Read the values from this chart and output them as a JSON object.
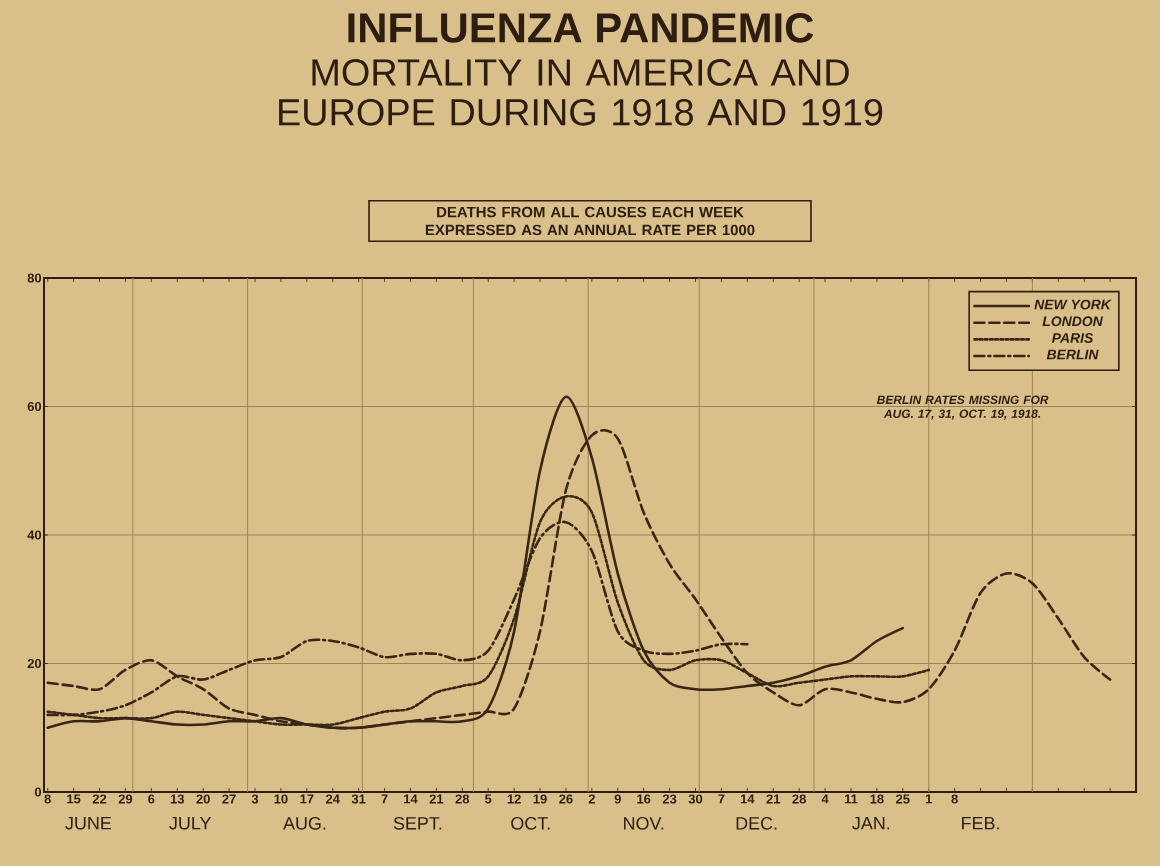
{
  "chart_data": {
    "type": "line",
    "title": "INFLUENZA PANDEMIC",
    "subtitle": "MORTALITY IN AMERICA AND EUROPE DURING 1918 AND 1919",
    "xlim": [
      "1918-06-07",
      "1919-03-29"
    ],
    "ylim": [
      0,
      80
    ],
    "yticks": [
      0,
      20,
      40,
      60,
      80
    ],
    "xticks": [
      {
        "value": "1918-06-08",
        "label": "8"
      },
      {
        "value": "1918-06-15",
        "label": "15"
      },
      {
        "value": "1918-06-22",
        "label": "22"
      },
      {
        "value": "1918-06-29",
        "label": "29"
      },
      {
        "value": "1918-07-06",
        "label": "6"
      },
      {
        "value": "1918-07-13",
        "label": "13"
      },
      {
        "value": "1918-07-20",
        "label": "20"
      },
      {
        "value": "1918-07-27",
        "label": "27"
      },
      {
        "value": "1918-08-03",
        "label": "3"
      },
      {
        "value": "1918-08-10",
        "label": "10"
      },
      {
        "value": "1918-08-17",
        "label": "17"
      },
      {
        "value": "1918-08-24",
        "label": "24"
      },
      {
        "value": "1918-08-31",
        "label": "31"
      },
      {
        "value": "1918-09-07",
        "label": "7"
      },
      {
        "value": "1918-09-14",
        "label": "14"
      },
      {
        "value": "1918-09-21",
        "label": "21"
      },
      {
        "value": "1918-09-28",
        "label": "28"
      },
      {
        "value": "1918-10-05",
        "label": "5"
      },
      {
        "value": "1918-10-12",
        "label": "12"
      },
      {
        "value": "1918-10-19",
        "label": "19"
      },
      {
        "value": "1918-10-26",
        "label": "26"
      },
      {
        "value": "1918-11-02",
        "label": "2"
      },
      {
        "value": "1918-11-09",
        "label": "9"
      },
      {
        "value": "1918-11-16",
        "label": "16"
      },
      {
        "value": "1918-11-23",
        "label": "23"
      },
      {
        "value": "1918-11-30",
        "label": "30"
      },
      {
        "value": "1918-12-07",
        "label": "7"
      },
      {
        "value": "1918-12-14",
        "label": "14"
      },
      {
        "value": "1918-12-21",
        "label": "21"
      },
      {
        "value": "1918-12-28",
        "label": "28"
      },
      {
        "value": "1919-01-04",
        "label": "4"
      },
      {
        "value": "1919-01-11",
        "label": "11"
      },
      {
        "value": "1919-01-18",
        "label": "18"
      },
      {
        "value": "1919-01-25",
        "label": "25"
      },
      {
        "value": "1919-02-01",
        "label": "1"
      },
      {
        "value": "1919-02-08",
        "label": "8"
      },
      {
        "value": "1919-02-15",
        "label": null
      },
      {
        "value": "1919-02-22",
        "label": null
      },
      {
        "value": "1919-03-01",
        "label": null
      },
      {
        "value": "1919-03-08",
        "label": null
      },
      {
        "value": "1919-03-15",
        "label": null
      },
      {
        "value": "1919-03-22",
        "label": null
      }
    ],
    "grid": "y",
    "legend": "top right",
    "ref_lines": [
      {
        "axis": "x",
        "value": "1918-07-01"
      },
      {
        "axis": "x",
        "value": "1918-08-01"
      },
      {
        "axis": "x",
        "value": "1918-09-01"
      },
      {
        "axis": "x",
        "value": "1918-10-01"
      },
      {
        "axis": "x",
        "value": "1918-11-01"
      },
      {
        "axis": "x",
        "value": "1918-12-01"
      },
      {
        "axis": "x",
        "value": "1919-01-01"
      },
      {
        "axis": "x",
        "value": "1919-02-01"
      },
      {
        "axis": "x",
        "value": "1919-03-01"
      }
    ],
    "annotations": [
      "DEATHS FROM ALL CAUSES EACH WEEK EXPRESSED AS AN ANNUAL RATE PER 1000",
      "BERLIN RATES MISSING FOR AUG. 17, 31, OCT. 19, 1918.",
      "JUNE",
      "JULY",
      "AUG.",
      "SEPT.",
      "OCT.",
      "NOV.",
      "DEC.",
      "JAN.",
      "FEB."
    ],
    "series": [
      {
        "name": "NEW YORK",
        "color": "#3b2616",
        "line_style": "solid",
        "x": [
          "1918-06-08",
          "1918-06-15",
          "1918-06-22",
          "1918-06-29",
          "1918-07-06",
          "1918-07-13",
          "1918-07-20",
          "1918-07-27",
          "1918-08-03",
          "1918-08-10",
          "1918-08-17",
          "1918-08-24",
          "1918-08-31",
          "1918-09-07",
          "1918-09-14",
          "1918-09-21",
          "1918-09-28",
          "1918-10-05",
          "1918-10-12",
          "1918-10-19",
          "1918-10-26",
          "1918-11-02",
          "1918-11-09",
          "1918-11-16",
          "1918-11-23",
          "1918-11-30",
          "1918-12-07",
          "1918-12-14",
          "1918-12-21",
          "1918-12-28",
          "1919-01-04",
          "1919-01-11",
          "1919-01-18",
          "1919-01-25"
        ],
        "values": [
          10,
          11,
          11,
          11.5,
          11,
          10.5,
          10.5,
          11,
          11,
          11.5,
          10.5,
          10,
          10,
          10.5,
          11,
          11,
          11,
          13,
          25,
          50,
          61.5,
          52,
          34,
          22,
          17,
          16,
          16,
          16.5,
          17,
          18,
          19.5,
          20.5,
          23.5,
          25.5
        ]
      },
      {
        "name": "LONDON",
        "color": "#3b2616",
        "line_style": "dashed",
        "x": [
          "1918-06-08",
          "1918-06-15",
          "1918-06-22",
          "1918-06-29",
          "1918-07-06",
          "1918-07-13",
          "1918-07-20",
          "1918-07-27",
          "1918-08-03",
          "1918-08-10",
          "1918-08-17",
          "1918-08-24",
          "1918-08-31",
          "1918-09-07",
          "1918-09-14",
          "1918-09-21",
          "1918-09-28",
          "1918-10-05",
          "1918-10-12",
          "1918-10-19",
          "1918-10-26",
          "1918-11-02",
          "1918-11-09",
          "1918-11-16",
          "1918-11-23",
          "1918-11-30",
          "1918-12-07",
          "1918-12-14",
          "1918-12-21",
          "1918-12-28",
          "1919-01-04",
          "1919-01-11",
          "1919-01-18",
          "1919-01-25",
          "1919-02-01",
          "1919-02-08",
          "1919-02-15",
          "1919-02-22",
          "1919-03-01",
          "1919-03-08",
          "1919-03-15",
          "1919-03-22"
        ],
        "values": [
          17,
          16.5,
          16,
          19,
          20.5,
          18,
          16,
          13,
          12,
          11,
          10.5,
          10,
          10,
          10.5,
          11,
          11.5,
          12,
          12.5,
          13,
          25,
          47,
          55.5,
          55,
          43.5,
          35.5,
          30,
          24,
          18.5,
          15.5,
          13.5,
          16,
          15.5,
          14.5,
          14,
          16,
          22,
          31,
          34,
          32.5,
          27,
          21,
          17.5
        ]
      },
      {
        "name": "PARIS",
        "color": "#3b2616",
        "line_style": "dotted",
        "x": [
          "1918-06-08",
          "1918-06-15",
          "1918-06-22",
          "1918-06-29",
          "1918-07-06",
          "1918-07-13",
          "1918-07-20",
          "1918-07-27",
          "1918-08-03",
          "1918-08-10",
          "1918-08-17",
          "1918-08-24",
          "1918-08-31",
          "1918-09-07",
          "1918-09-14",
          "1918-09-21",
          "1918-09-28",
          "1918-10-05",
          "1918-10-12",
          "1918-10-19",
          "1918-10-26",
          "1918-11-02",
          "1918-11-09",
          "1918-11-16",
          "1918-11-23",
          "1918-11-30",
          "1918-12-07",
          "1918-12-14",
          "1918-12-21",
          "1918-12-28",
          "1919-01-04",
          "1919-01-11",
          "1919-01-18",
          "1919-01-25",
          "1919-02-01"
        ],
        "values": [
          12.5,
          12,
          11.5,
          11.5,
          11.5,
          12.5,
          12,
          11.5,
          11,
          10.5,
          10.5,
          10.5,
          11.5,
          12.5,
          13,
          15.5,
          16.5,
          18,
          27,
          42,
          46,
          43.5,
          29.5,
          20.5,
          19,
          20.5,
          20.5,
          18.5,
          16.5,
          17,
          17.5,
          18,
          18,
          18,
          19
        ]
      },
      {
        "name": "BERLIN",
        "color": "#3b2616",
        "line_style": "dashdot",
        "x": [
          "1918-06-08",
          "1918-06-15",
          "1918-06-22",
          "1918-06-29",
          "1918-07-06",
          "1918-07-13",
          "1918-07-20",
          "1918-07-27",
          "1918-08-03",
          "1918-08-10",
          "1918-08-17",
          "1918-08-24",
          "1918-08-31",
          "1918-09-07",
          "1918-09-14",
          "1918-09-21",
          "1918-09-28",
          "1918-10-05",
          "1918-10-12",
          "1918-10-19",
          "1918-10-26",
          "1918-11-02",
          "1918-11-09",
          "1918-11-16",
          "1918-11-23",
          "1918-11-30",
          "1918-12-07",
          "1918-12-14"
        ],
        "values": [
          12,
          12,
          12.5,
          13.5,
          15.5,
          18,
          17.5,
          19,
          20.5,
          21,
          23.5,
          23.5,
          22.5,
          21,
          21.5,
          21.5,
          20.5,
          22,
          30,
          39.5,
          42,
          37.5,
          25,
          22,
          21.5,
          22,
          23,
          23
        ]
      }
    ]
  }
}
